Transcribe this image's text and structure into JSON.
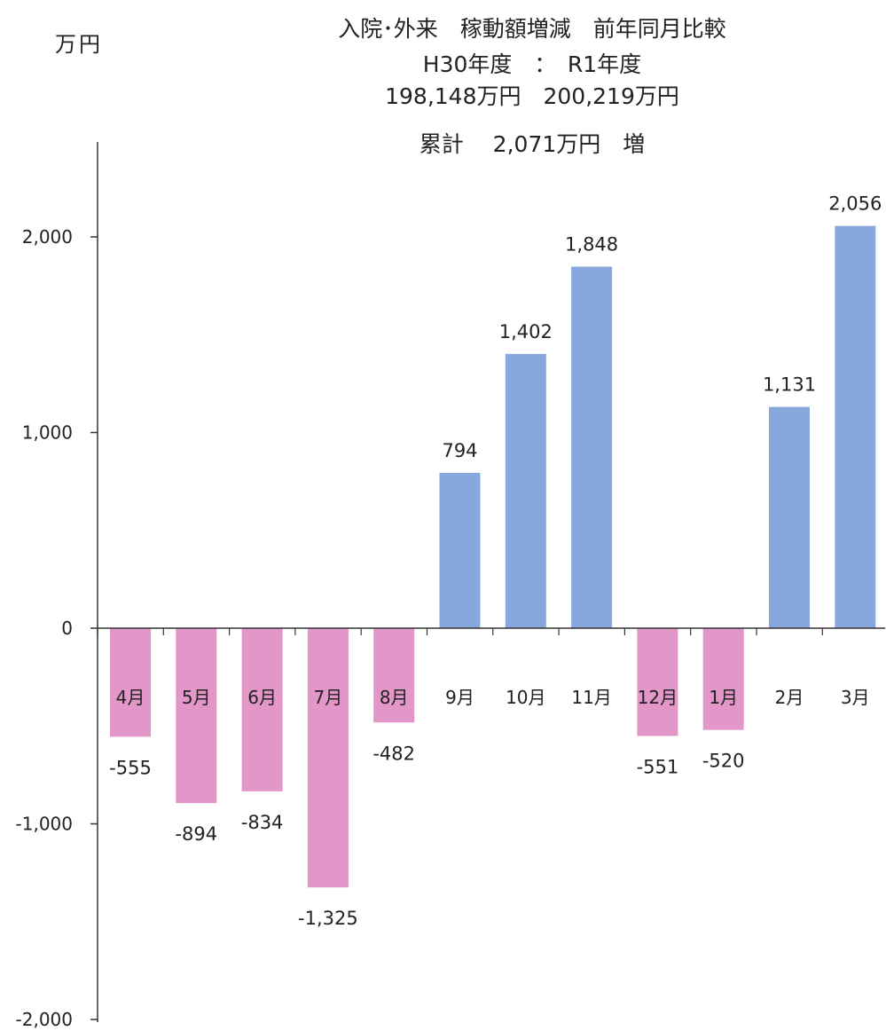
{
  "header": {
    "unit": "万円",
    "title_line1": "入院･外来　稼動額増減　前年同月比較",
    "title_line2": "H30年度　：　R1年度",
    "title_line3": "198,148万円　200,219万円",
    "title_line4": "累計　 2,071万円　増"
  },
  "chart_data": {
    "type": "bar",
    "title": "入院･外来　稼動額増減　前年同月比較",
    "ylabel": "万円",
    "xlabel": "",
    "categories": [
      "4月",
      "5月",
      "6月",
      "7月",
      "8月",
      "9月",
      "10月",
      "11月",
      "12月",
      "1月",
      "2月",
      "3月"
    ],
    "values": [
      -555,
      -894,
      -834,
      -1325,
      -482,
      794,
      1402,
      1848,
      -551,
      -520,
      1131,
      2056
    ],
    "value_labels": [
      "-555",
      "-894",
      "-834",
      "-1,325",
      "-482",
      "794",
      "1,402",
      "1,848",
      "-551",
      "-520",
      "1,131",
      "2,056"
    ],
    "ylim": [
      -2000,
      2000
    ],
    "yticks": [
      2000,
      1000,
      0,
      -1000,
      -2000
    ],
    "ytick_labels": [
      "2,000",
      "1,000",
      "0",
      "-1,000",
      "-2,000"
    ],
    "colors": {
      "positive": "#86a8dc",
      "negative": "#e397c8"
    },
    "grid": false
  }
}
